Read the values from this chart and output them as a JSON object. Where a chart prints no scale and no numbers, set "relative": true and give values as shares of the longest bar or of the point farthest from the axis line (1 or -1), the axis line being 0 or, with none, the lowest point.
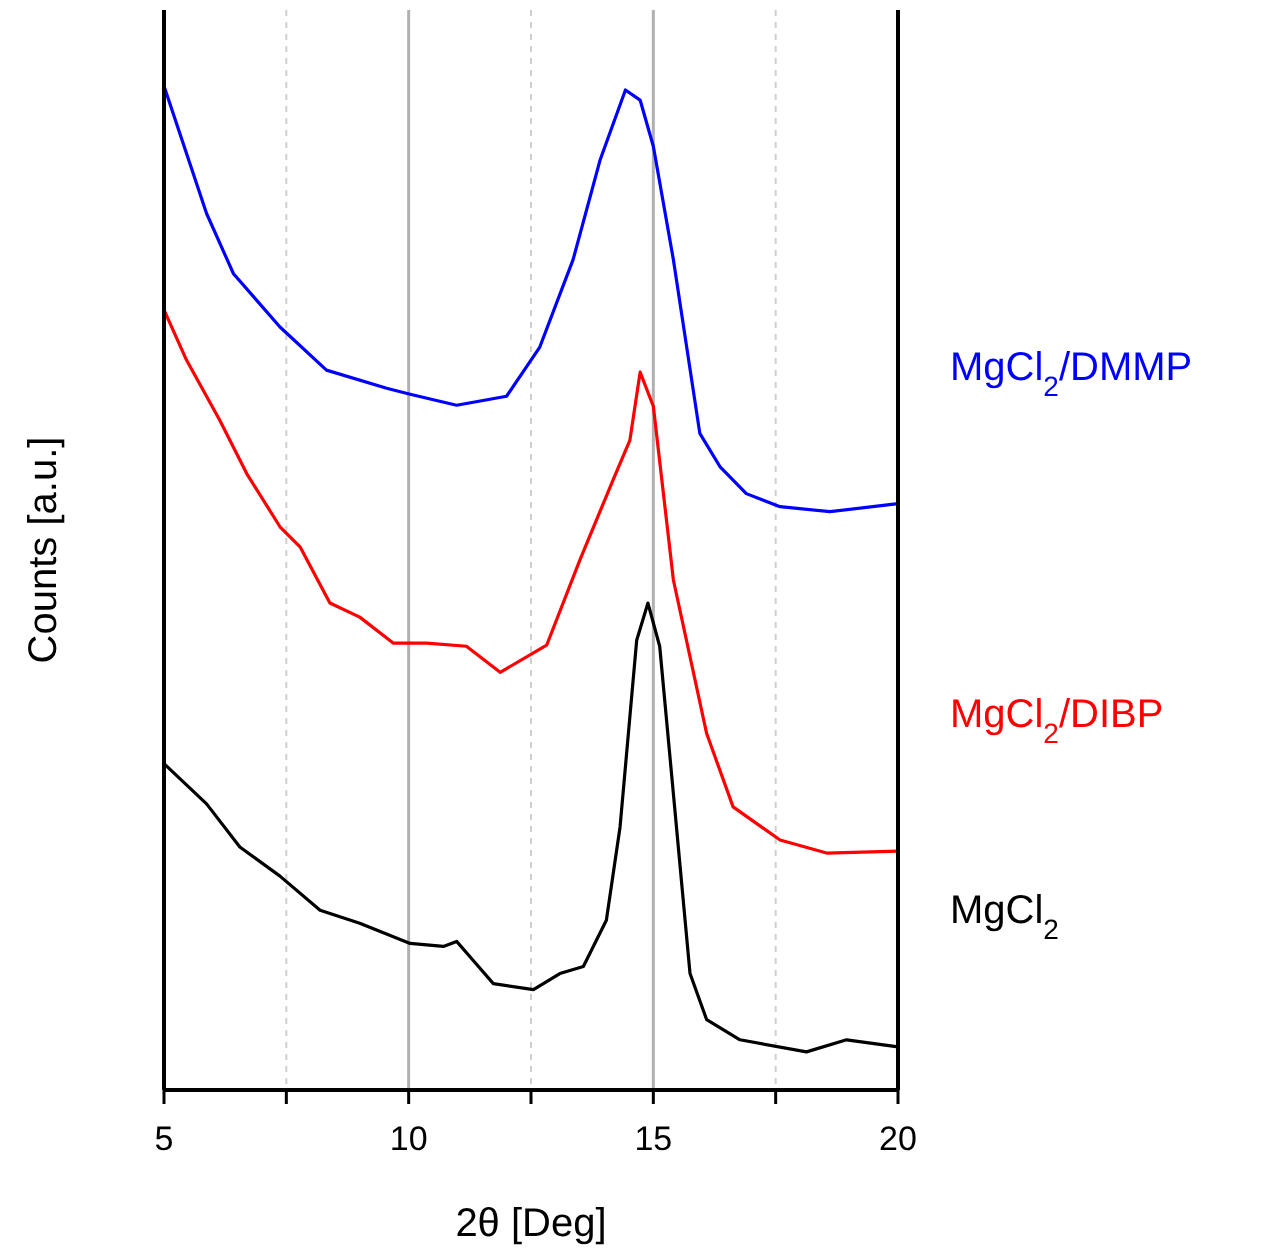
{
  "chart_data": {
    "type": "line",
    "relative": true,
    "xlabel": "2θ [Deg]",
    "ylabel": "Counts [a.u.]",
    "xlim": [
      5,
      20
    ],
    "xticks": [
      5,
      {
        "value": 7.5,
        "label": null
      },
      10,
      {
        "value": 12.5,
        "label": null
      },
      15,
      {
        "value": 17.5,
        "label": null
      },
      20
    ],
    "grid": "x",
    "legend": "right",
    "marker": "none",
    "line_style": "solid",
    "tick_labels": "x",
    "series": [
      {
        "name": "MgCl$_{2}$/DMMP",
        "color": "#0000ff",
        "x": [
          5,
          5.87,
          6.42,
          7.37,
          8.32,
          9.55,
          10.03,
          10.98,
          12.0,
          12.68,
          13.36,
          13.91,
          14.43,
          14.73,
          15.0,
          15.41,
          15.95,
          16.36,
          16.9,
          17.59,
          18.61,
          20
        ],
        "values": [
          1.0,
          0.873,
          0.813,
          0.76,
          0.717,
          0.699,
          0.693,
          0.682,
          0.691,
          0.74,
          0.827,
          0.926,
          0.996,
          0.986,
          0.94,
          0.827,
          0.654,
          0.621,
          0.594,
          0.581,
          0.576,
          0.584
        ]
      },
      {
        "name": "MgCl$_{2}$/DIBP",
        "color": "#ff0000",
        "x": [
          5,
          5.46,
          6.14,
          6.69,
          7.37,
          7.78,
          8.39,
          9.0,
          9.69,
          10.37,
          11.18,
          11.87,
          12.82,
          13.5,
          14.18,
          14.52,
          14.73,
          15.0,
          15.41,
          16.09,
          16.63,
          17.59,
          18.54,
          20
        ],
        "values": [
          0.777,
          0.727,
          0.667,
          0.614,
          0.561,
          0.541,
          0.485,
          0.471,
          0.445,
          0.445,
          0.442,
          0.416,
          0.443,
          0.528,
          0.608,
          0.647,
          0.715,
          0.681,
          0.508,
          0.355,
          0.282,
          0.249,
          0.236,
          0.238
        ]
      },
      {
        "name": "MgCl$_{2}$",
        "color": "#000000",
        "x": [
          5,
          5.87,
          6.55,
          7.37,
          8.19,
          9.0,
          10.03,
          10.71,
          10.98,
          11.32,
          11.73,
          12.55,
          13.09,
          13.57,
          14.04,
          14.32,
          14.66,
          14.89,
          15.13,
          15.41,
          15.75,
          16.09,
          16.77,
          18.13,
          18.95,
          20
        ],
        "values": [
          0.325,
          0.285,
          0.242,
          0.213,
          0.179,
          0.166,
          0.146,
          0.143,
          0.148,
          0.129,
          0.106,
          0.1,
          0.116,
          0.123,
          0.169,
          0.262,
          0.448,
          0.485,
          0.442,
          0.295,
          0.116,
          0.07,
          0.05,
          0.038,
          0.05,
          0.043
        ]
      }
    ]
  }
}
